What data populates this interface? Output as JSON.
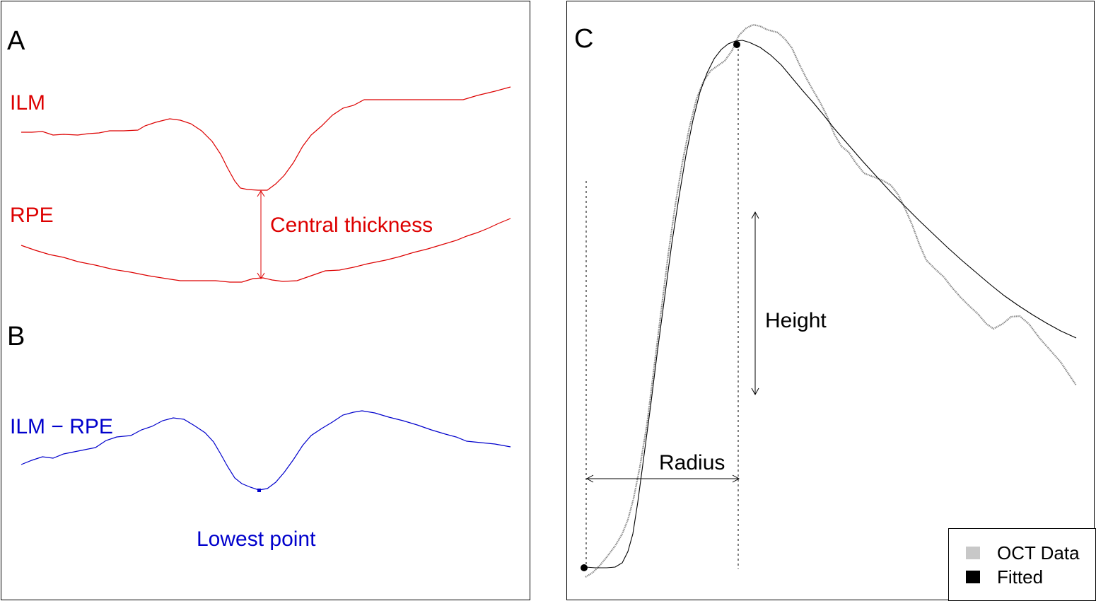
{
  "panels": {
    "a": {
      "letter": "A",
      "ilm_label": "ILM",
      "rpe_label": "RPE",
      "thickness_label": "Central thickness"
    },
    "b": {
      "letter": "B",
      "diff_label": "ILM − RPE",
      "lowest_label": "Lowest point"
    },
    "c": {
      "letter": "C",
      "height_label": "Height",
      "radius_label": "Radius",
      "legend": [
        {
          "label": "OCT Data",
          "color": "#c8c8c8"
        },
        {
          "label": "Fitted",
          "color": "#000000"
        }
      ]
    }
  },
  "colors": {
    "red": "#dd0000",
    "blue": "#0000cc",
    "oct_data": "#888888",
    "fitted": "#000000"
  }
}
